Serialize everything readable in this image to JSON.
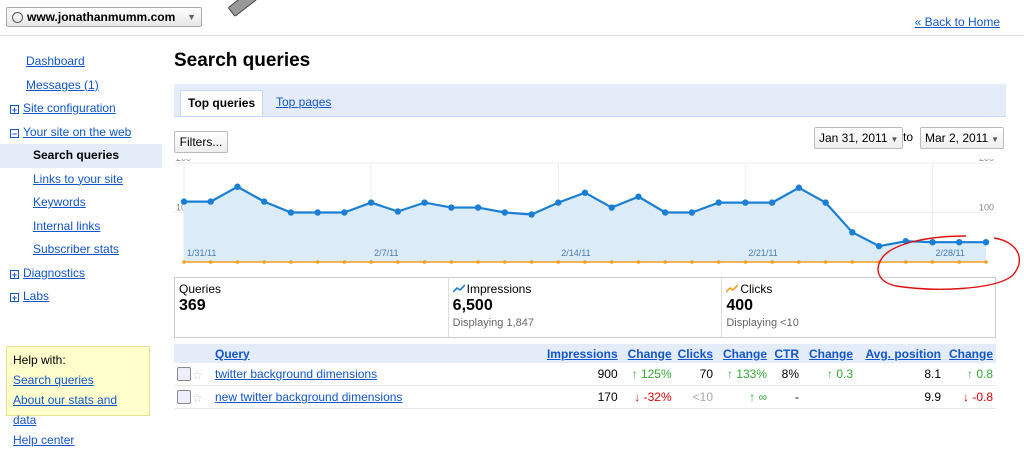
{
  "header": {
    "site": "www.jonathanmumm.com",
    "back_home": "« Back to Home"
  },
  "sidebar": {
    "items": [
      {
        "label": "Dashboard"
      },
      {
        "label": "Messages (1)"
      },
      {
        "label": "Site configuration"
      },
      {
        "label": "Your site on the web"
      },
      {
        "label": "Search queries"
      },
      {
        "label": "Links to your site"
      },
      {
        "label": "Keywords"
      },
      {
        "label": "Internal links"
      },
      {
        "label": "Subscriber stats"
      },
      {
        "label": "Diagnostics"
      },
      {
        "label": "Labs"
      }
    ],
    "help": {
      "title": "Help with:",
      "links": [
        "Search queries",
        "About our stats and data",
        "Help center"
      ]
    }
  },
  "main": {
    "title": "Search queries",
    "tabs": [
      "Top queries",
      "Top pages"
    ],
    "filters": "Filters...",
    "date_from": "Jan 31, 2011",
    "date_to_word": "to",
    "date_to": "Mar 2, 2011"
  },
  "chart_data": {
    "type": "line",
    "ylim": [
      0,
      200
    ],
    "yticks": [
      100,
      200
    ],
    "x": [
      "1/31/11",
      "2/1",
      "2/2",
      "2/3",
      "2/4",
      "2/5",
      "2/6",
      "2/7/11",
      "2/8",
      "2/9",
      "2/10",
      "2/11",
      "2/12",
      "2/13",
      "2/14/11",
      "2/15",
      "2/16",
      "2/17",
      "2/18",
      "2/19",
      "2/20",
      "2/21/11",
      "2/22",
      "2/23",
      "2/24",
      "2/25",
      "2/26",
      "2/27",
      "2/28",
      "3/1",
      "3/2"
    ],
    "xtick_labels": [
      "1/31/11",
      "2/7/11",
      "2/14/11",
      "2/21/11",
      "2/28/11"
    ],
    "series": [
      {
        "name": "Impressions",
        "color": "#1a7fd4",
        "values": [
          122,
          122,
          152,
          122,
          100,
          100,
          100,
          120,
          102,
          120,
          110,
          110,
          100,
          96,
          120,
          140,
          110,
          132,
          100,
          100,
          120,
          120,
          120,
          150,
          120,
          60,
          32,
          42,
          40,
          40,
          40
        ]
      },
      {
        "name": "Clicks",
        "color": "#f0a020",
        "values": [
          0,
          0,
          0,
          0,
          0,
          0,
          0,
          0,
          0,
          0,
          0,
          0,
          0,
          0,
          0,
          0,
          0,
          0,
          0,
          0,
          0,
          0,
          0,
          0,
          0,
          0,
          0,
          0,
          0,
          0,
          0
        ]
      }
    ]
  },
  "stats": {
    "queries": {
      "label": "Queries",
      "value": "369"
    },
    "impressions": {
      "label": "Impressions",
      "value": "6,500",
      "sub": "Displaying 1,847"
    },
    "clicks": {
      "label": "Clicks",
      "value": "400",
      "sub": "Displaying <10"
    }
  },
  "table": {
    "headers": [
      "Query",
      "Impressions",
      "Change",
      "Clicks",
      "Change",
      "CTR",
      "Change",
      "Avg. position",
      "Change"
    ],
    "rows": [
      {
        "query": "twitter background dimensions",
        "impressions": "900",
        "imp_change": "↑ 125%",
        "imp_dir": "up",
        "clicks": "70",
        "clk_change": "↑ 133%",
        "clk_dir": "up",
        "ctr": "8%",
        "ctr_change": "↑ 0.3",
        "ctr_dir": "up",
        "pos": "8.1",
        "pos_change": "↑ 0.8",
        "pos_dir": "up"
      },
      {
        "query": "new twitter background dimensions",
        "impressions": "170",
        "imp_change": "↓ -32%",
        "imp_dir": "down",
        "clicks": "<10",
        "clk_change": "↑ ∞",
        "clk_dir": "up",
        "ctr": "-",
        "ctr_change": "",
        "ctr_dir": "up",
        "pos": "9.9",
        "pos_change": "↓ -0.8",
        "pos_dir": "down"
      }
    ]
  },
  "colors": {
    "link": "#1155cc",
    "accent_bg": "#e5ecf9",
    "annotation": "#e01010"
  }
}
